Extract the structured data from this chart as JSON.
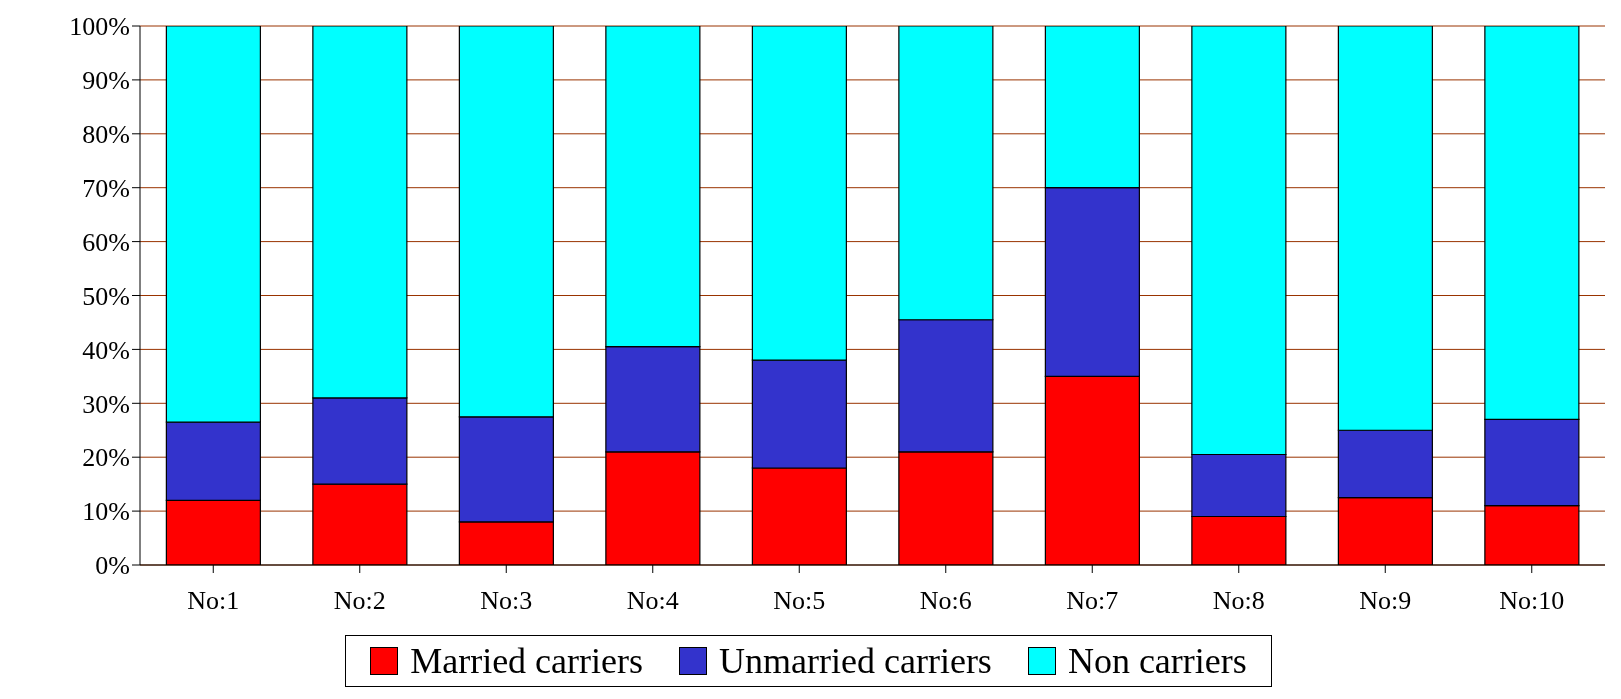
{
  "chart_data": {
    "type": "bar",
    "stacked": true,
    "categories": [
      "No:1",
      "No:2",
      "No:3",
      "No:4",
      "No:5",
      "No:6",
      "No:7",
      "No:8",
      "No:9",
      "No:10"
    ],
    "series": [
      {
        "name": "Married carriers",
        "color": "#ff0000",
        "values": [
          12,
          15,
          8,
          21,
          18,
          21,
          35,
          9,
          12.5,
          11
        ]
      },
      {
        "name": "Unmarried carriers",
        "color": "#3333cc",
        "values": [
          14.5,
          16,
          19.5,
          19.5,
          20,
          24.5,
          35,
          11.5,
          12.5,
          16
        ]
      },
      {
        "name": "Non carriers",
        "color": "#00ffff",
        "values": [
          73.5,
          69,
          72.5,
          59.5,
          62,
          54.5,
          30,
          79.5,
          75,
          73
        ]
      }
    ],
    "ylim": [
      0,
      100
    ],
    "yticks": [
      {
        "value": 0,
        "label": "0%"
      },
      {
        "value": 10,
        "label": "10%"
      },
      {
        "value": 20,
        "label": "20%"
      },
      {
        "value": 30,
        "label": "30%"
      },
      {
        "value": 40,
        "label": "40%"
      },
      {
        "value": 50,
        "label": "50%"
      },
      {
        "value": 60,
        "label": "60%"
      },
      {
        "value": 70,
        "label": "70%"
      },
      {
        "value": 80,
        "label": "80%"
      },
      {
        "value": 90,
        "label": "90%"
      },
      {
        "value": 100,
        "label": "100%"
      }
    ],
    "grid": "y",
    "legend": "bottom"
  }
}
